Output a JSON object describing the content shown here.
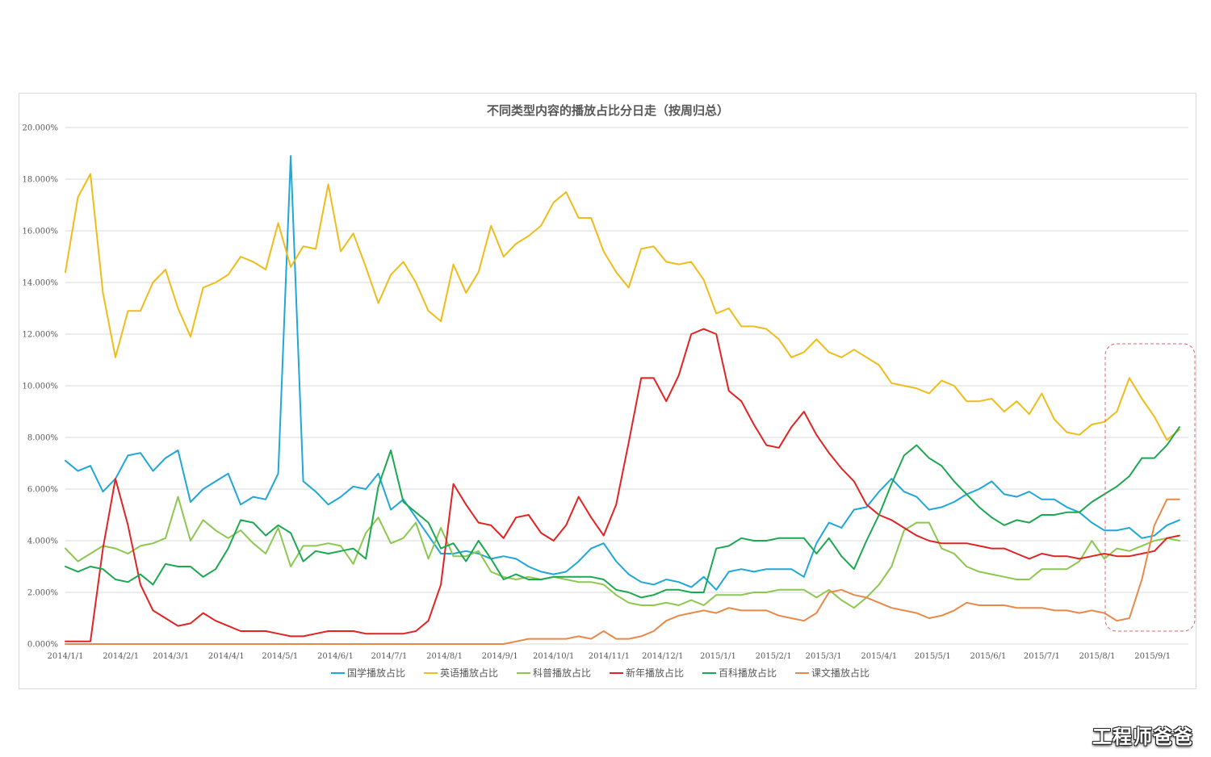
{
  "watermark": "工程师爸爸",
  "chart_data": {
    "type": "line",
    "title": "不同类型内容的播放占比分日走（按周归总）",
    "ylim": [
      0,
      20
    ],
    "yticks": [
      "0.000%",
      "2.000%",
      "4.000%",
      "6.000%",
      "8.000%",
      "10.000%",
      "12.000%",
      "14.000%",
      "16.000%",
      "18.000%",
      "20.000%"
    ],
    "x_range": [
      "2014-01-01",
      "2015-09-21"
    ],
    "xticks": [
      {
        "label": "2014/1/1",
        "date": "2014-01-01"
      },
      {
        "label": "2014/2/1",
        "date": "2014-02-01"
      },
      {
        "label": "2014/3/1",
        "date": "2014-03-01"
      },
      {
        "label": "2014/4/1",
        "date": "2014-04-01"
      },
      {
        "label": "2014/5/1",
        "date": "2014-05-01"
      },
      {
        "label": "2014/6/1",
        "date": "2014-06-01"
      },
      {
        "label": "2014/7/1",
        "date": "2014-07-01"
      },
      {
        "label": "2014/8/1",
        "date": "2014-08-01"
      },
      {
        "label": "2014/9/1",
        "date": "2014-09-01"
      },
      {
        "label": "2014/10/1",
        "date": "2014-10-01"
      },
      {
        "label": "2014/11/1",
        "date": "2014-11-01"
      },
      {
        "label": "2014/12/1",
        "date": "2014-12-01"
      },
      {
        "label": "2015/1/1",
        "date": "2015-01-01"
      },
      {
        "label": "2015/2/1",
        "date": "2015-02-01"
      },
      {
        "label": "2015/3/1",
        "date": "2015-03-01"
      },
      {
        "label": "2015/4/1",
        "date": "2015-04-01"
      },
      {
        "label": "2015/5/1",
        "date": "2015-05-01"
      },
      {
        "label": "2015/6/1",
        "date": "2015-06-01"
      },
      {
        "label": "2015/7/1",
        "date": "2015-07-01"
      },
      {
        "label": "2015/8/1",
        "date": "2015-08-01"
      },
      {
        "label": "2015/9/1",
        "date": "2015-09-01"
      }
    ],
    "x": [
      "2014-01-01",
      "2014-01-08",
      "2014-01-15",
      "2014-01-22",
      "2014-01-29",
      "2014-02-05",
      "2014-02-12",
      "2014-02-19",
      "2014-02-26",
      "2014-03-05",
      "2014-03-12",
      "2014-03-19",
      "2014-03-26",
      "2014-04-02",
      "2014-04-09",
      "2014-04-16",
      "2014-04-23",
      "2014-04-30",
      "2014-05-07",
      "2014-05-14",
      "2014-05-21",
      "2014-05-28",
      "2014-06-04",
      "2014-06-11",
      "2014-06-18",
      "2014-06-25",
      "2014-07-02",
      "2014-07-09",
      "2014-07-16",
      "2014-07-23",
      "2014-07-30",
      "2014-08-06",
      "2014-08-13",
      "2014-08-20",
      "2014-08-27",
      "2014-09-03",
      "2014-09-10",
      "2014-09-17",
      "2014-09-24",
      "2014-10-01",
      "2014-10-08",
      "2014-10-15",
      "2014-10-22",
      "2014-10-29",
      "2014-11-05",
      "2014-11-12",
      "2014-11-19",
      "2014-11-26",
      "2014-12-03",
      "2014-12-10",
      "2014-12-17",
      "2014-12-24",
      "2014-12-31",
      "2015-01-07",
      "2015-01-14",
      "2015-01-21",
      "2015-01-28",
      "2015-02-04",
      "2015-02-11",
      "2015-02-18",
      "2015-02-25",
      "2015-03-04",
      "2015-03-11",
      "2015-03-18",
      "2015-03-25",
      "2015-04-01",
      "2015-04-08",
      "2015-04-15",
      "2015-04-22",
      "2015-04-29",
      "2015-05-06",
      "2015-05-13",
      "2015-05-20",
      "2015-05-27",
      "2015-06-03",
      "2015-06-10",
      "2015-06-17",
      "2015-06-24",
      "2015-07-01",
      "2015-07-08",
      "2015-07-15",
      "2015-07-22",
      "2015-07-29",
      "2015-08-05",
      "2015-08-12",
      "2015-08-19",
      "2015-08-26",
      "2015-09-02",
      "2015-09-09",
      "2015-09-16"
    ],
    "series": [
      {
        "name": "国学播放占比",
        "color": "#1fa7d8",
        "values": [
          7.1,
          6.7,
          6.9,
          5.9,
          6.4,
          7.3,
          7.4,
          6.7,
          7.2,
          7.5,
          5.5,
          6.0,
          6.3,
          6.6,
          5.4,
          5.7,
          5.6,
          6.6,
          18.9,
          6.3,
          5.9,
          5.4,
          5.7,
          6.1,
          6.0,
          6.6,
          5.2,
          5.6,
          4.9,
          4.2,
          3.5,
          3.5,
          3.6,
          3.5,
          3.3,
          3.4,
          3.3,
          3.0,
          2.8,
          2.7,
          2.8,
          3.2,
          3.7,
          3.9,
          3.2,
          2.7,
          2.4,
          2.3,
          2.5,
          2.4,
          2.2,
          2.6,
          2.1,
          2.8,
          2.9,
          2.8,
          2.9,
          2.9,
          2.9,
          2.6,
          3.9,
          4.7,
          4.5,
          5.2,
          5.3,
          5.9,
          6.4,
          5.9,
          5.7,
          5.2,
          5.3,
          5.5,
          5.8,
          6.0,
          6.3,
          5.8,
          5.7,
          5.9,
          5.6,
          5.6,
          5.3,
          5.1,
          4.7,
          4.4,
          4.4,
          4.5,
          4.1,
          4.2,
          4.6,
          4.8
        ]
      },
      {
        "name": "英语播放占比",
        "color": "#f0bc1a",
        "values": [
          14.4,
          17.3,
          18.2,
          13.6,
          11.1,
          12.9,
          12.9,
          14.0,
          14.5,
          13.0,
          11.9,
          13.8,
          14.0,
          14.3,
          15.0,
          14.8,
          14.5,
          16.3,
          14.6,
          15.4,
          15.3,
          17.8,
          15.2,
          15.9,
          14.6,
          13.2,
          14.3,
          14.8,
          14.0,
          12.9,
          12.5,
          14.7,
          13.6,
          14.4,
          16.2,
          15.0,
          15.5,
          15.8,
          16.2,
          17.1,
          17.5,
          16.5,
          16.5,
          15.2,
          14.4,
          13.8,
          15.3,
          15.4,
          14.8,
          14.7,
          14.8,
          14.1,
          12.8,
          13.0,
          12.3,
          12.3,
          12.2,
          11.8,
          11.1,
          11.3,
          11.8,
          11.3,
          11.1,
          11.4,
          11.1,
          10.8,
          10.1,
          10.0,
          9.9,
          9.7,
          10.2,
          10.0,
          9.4,
          9.4,
          9.5,
          9.0,
          9.4,
          8.9,
          9.7,
          8.7,
          8.2,
          8.1,
          8.5,
          8.6,
          9.0,
          10.3,
          9.5,
          8.8,
          7.9,
          8.3
        ]
      },
      {
        "name": "科普播放占比",
        "color": "#8cc84f",
        "values": [
          3.7,
          3.2,
          3.5,
          3.8,
          3.7,
          3.5,
          3.8,
          3.9,
          4.1,
          5.7,
          4.0,
          4.8,
          4.4,
          4.1,
          4.4,
          3.9,
          3.5,
          4.5,
          3.0,
          3.8,
          3.8,
          3.9,
          3.8,
          3.1,
          4.3,
          4.9,
          3.9,
          4.1,
          4.7,
          3.3,
          4.5,
          3.4,
          3.4,
          3.6,
          2.8,
          2.6,
          2.5,
          2.6,
          2.5,
          2.6,
          2.5,
          2.4,
          2.4,
          2.3,
          1.9,
          1.6,
          1.5,
          1.5,
          1.6,
          1.5,
          1.7,
          1.5,
          1.9,
          1.9,
          1.9,
          2.0,
          2.0,
          2.1,
          2.1,
          2.1,
          1.8,
          2.1,
          1.7,
          1.4,
          1.8,
          2.3,
          3.0,
          4.4,
          4.7,
          4.7,
          3.7,
          3.5,
          3.0,
          2.8,
          2.7,
          2.6,
          2.5,
          2.5,
          2.9,
          2.9,
          2.9,
          3.2,
          4.0,
          3.3,
          3.7,
          3.6,
          3.8,
          4.0,
          4.1,
          4.0
        ]
      },
      {
        "name": "新年播放占比",
        "color": "#e02424",
        "values": [
          0.1,
          0.1,
          0.1,
          3.7,
          6.4,
          4.6,
          2.3,
          1.3,
          1.0,
          0.7,
          0.8,
          1.2,
          0.9,
          0.7,
          0.5,
          0.5,
          0.5,
          0.4,
          0.3,
          0.3,
          0.4,
          0.5,
          0.5,
          0.5,
          0.4,
          0.4,
          0.4,
          0.4,
          0.5,
          0.9,
          2.3,
          6.2,
          5.4,
          4.7,
          4.6,
          4.1,
          4.9,
          5.0,
          4.3,
          4.0,
          4.6,
          5.7,
          4.9,
          4.2,
          5.4,
          7.8,
          10.3,
          10.3,
          9.4,
          10.4,
          12.0,
          12.2,
          12.0,
          9.8,
          9.4,
          8.5,
          7.7,
          7.6,
          8.4,
          9.0,
          8.1,
          7.4,
          6.8,
          6.3,
          5.4,
          5.0,
          4.8,
          4.5,
          4.2,
          4.0,
          3.9,
          3.9,
          3.9,
          3.8,
          3.7,
          3.7,
          3.5,
          3.3,
          3.5,
          3.4,
          3.4,
          3.3,
          3.4,
          3.5,
          3.4,
          3.4,
          3.5,
          3.6,
          4.1,
          4.2
        ]
      },
      {
        "name": "百科播放占比",
        "color": "#1ca850",
        "values": [
          3.0,
          2.8,
          3.0,
          2.9,
          2.5,
          2.4,
          2.7,
          2.3,
          3.1,
          3.0,
          3.0,
          2.6,
          2.9,
          3.7,
          4.8,
          4.7,
          4.2,
          4.6,
          4.3,
          3.2,
          3.6,
          3.5,
          3.6,
          3.7,
          3.3,
          6.1,
          7.5,
          5.5,
          5.1,
          4.7,
          3.7,
          3.9,
          3.2,
          4.0,
          3.3,
          2.5,
          2.7,
          2.5,
          2.5,
          2.6,
          2.6,
          2.6,
          2.6,
          2.5,
          2.1,
          2.0,
          1.8,
          1.9,
          2.1,
          2.1,
          2.0,
          2.0,
          3.7,
          3.8,
          4.1,
          4.0,
          4.0,
          4.1,
          4.1,
          4.1,
          3.5,
          4.1,
          3.4,
          2.9,
          4.0,
          5.0,
          6.2,
          7.3,
          7.7,
          7.2,
          6.9,
          6.3,
          5.8,
          5.3,
          4.9,
          4.6,
          4.8,
          4.7,
          5.0,
          5.0,
          5.1,
          5.1,
          5.5,
          5.8,
          6.1,
          6.5,
          7.2,
          7.2,
          7.7,
          8.4
        ]
      },
      {
        "name": "课文播放占比",
        "color": "#e8894a",
        "values": [
          0.0,
          0.0,
          0.0,
          0.0,
          0.0,
          0.0,
          0.0,
          0.0,
          0.0,
          0.0,
          0.0,
          0.0,
          0.0,
          0.0,
          0.0,
          0.0,
          0.0,
          0.0,
          0.0,
          0.0,
          0.0,
          0.0,
          0.0,
          0.0,
          0.0,
          0.0,
          0.0,
          0.0,
          0.0,
          0.0,
          0.0,
          0.0,
          0.0,
          0.0,
          0.0,
          0.0,
          0.1,
          0.2,
          0.2,
          0.2,
          0.2,
          0.3,
          0.2,
          0.5,
          0.2,
          0.2,
          0.3,
          0.5,
          0.9,
          1.1,
          1.2,
          1.3,
          1.2,
          1.4,
          1.3,
          1.3,
          1.3,
          1.1,
          1.0,
          0.9,
          1.2,
          2.0,
          2.1,
          1.9,
          1.8,
          1.6,
          1.4,
          1.3,
          1.2,
          1.0,
          1.1,
          1.3,
          1.6,
          1.5,
          1.5,
          1.5,
          1.4,
          1.4,
          1.4,
          1.3,
          1.3,
          1.2,
          1.3,
          1.2,
          0.9,
          1.0,
          2.5,
          4.6,
          5.6,
          5.6
        ]
      }
    ],
    "grid": true,
    "legend_position": "bottom",
    "annotation": "dashed rounded box highlighting the last weeks (2015/8 – 2015/9)"
  }
}
